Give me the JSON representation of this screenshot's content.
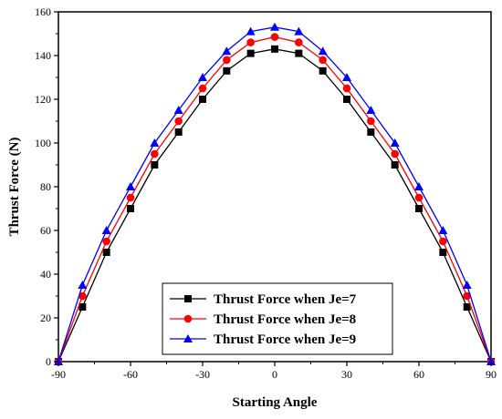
{
  "chart_data": {
    "type": "line",
    "title": "",
    "xlabel": "Starting Angle",
    "ylabel": "Thrust Force (N)",
    "xlim": [
      -90,
      90
    ],
    "ylim": [
      0,
      160
    ],
    "xticks": [
      -90,
      -60,
      -30,
      0,
      30,
      60,
      90
    ],
    "yticks": [
      0,
      20,
      40,
      60,
      80,
      100,
      120,
      140,
      160
    ],
    "x": [
      -90,
      -80,
      -70,
      -60,
      -50,
      -40,
      -30,
      -20,
      -10,
      0,
      10,
      20,
      30,
      40,
      50,
      60,
      70,
      80,
      90
    ],
    "grid": false,
    "legend_position": "bottom-center",
    "series": [
      {
        "name": "Thrust Force when Je=7",
        "color": "#000000",
        "marker": "square",
        "values": [
          0,
          25,
          50,
          70,
          90,
          105,
          120,
          133,
          141,
          143,
          141,
          133,
          120,
          105,
          90,
          70,
          50,
          25,
          0
        ]
      },
      {
        "name": "Thrust Force when Je=8",
        "color": "#ff0000",
        "marker": "circle",
        "values": [
          0,
          30,
          55,
          75,
          95,
          110,
          125,
          138,
          146,
          148.5,
          146,
          138,
          125,
          110,
          95,
          75,
          55,
          30,
          0
        ]
      },
      {
        "name": "Thrust Force when Je=9",
        "color": "#0000ff",
        "marker": "triangle",
        "values": [
          0,
          35,
          60,
          80,
          100,
          115,
          130,
          142,
          151,
          153,
          151,
          142,
          130,
          115,
          100,
          80,
          60,
          35,
          0
        ]
      }
    ]
  }
}
